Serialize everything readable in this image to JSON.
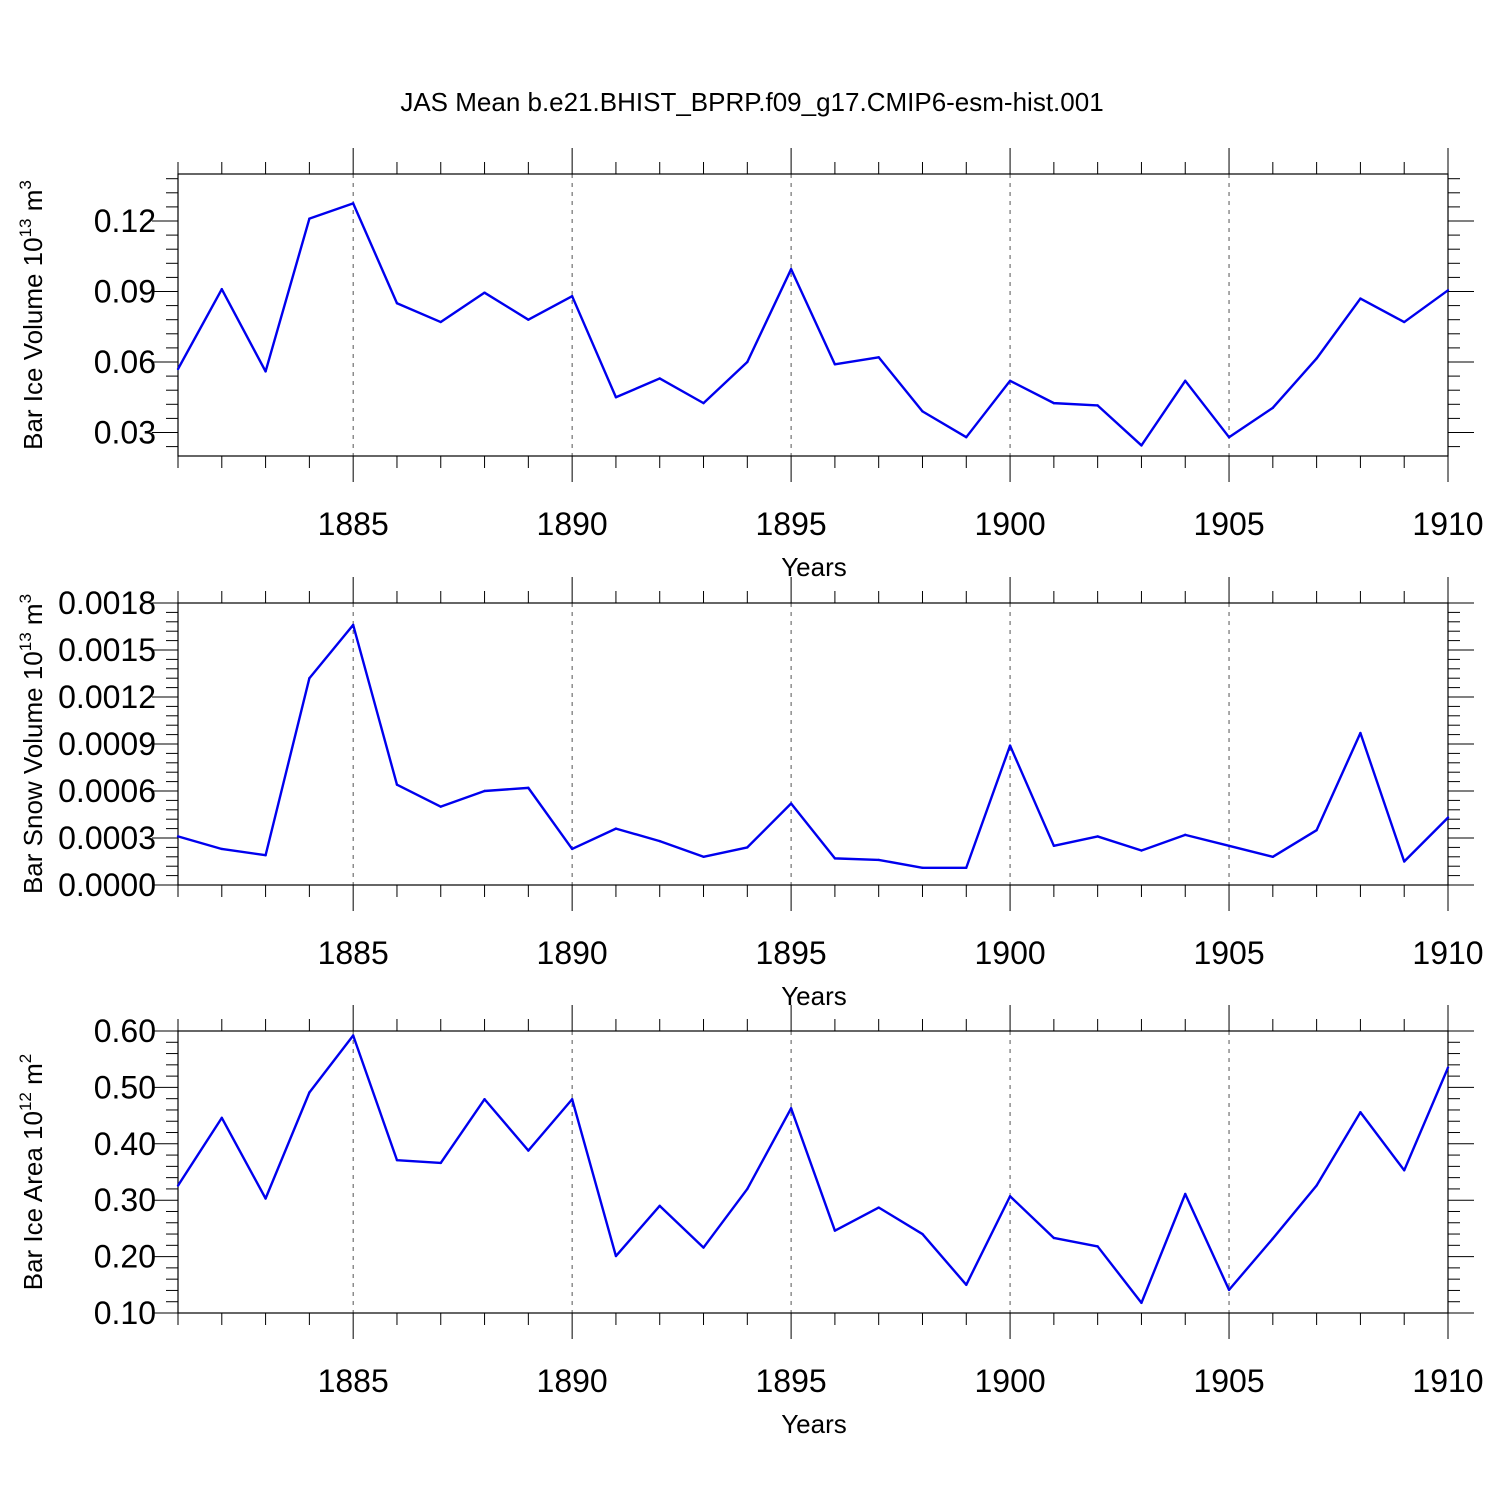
{
  "figure_title": "JAS Mean b.e21.BHIST_BPRP.f09_g17.CMIP6-esm-hist.001",
  "colors": {
    "line": "#0000ee",
    "axis": "#000000",
    "grid": "#555555"
  },
  "chart_data": [
    {
      "type": "line",
      "ylabel_main": "Bar Ice Volume 10",
      "ylabel_exp": "13",
      "ylabel_unit": " m",
      "ylabel_unit_exp": "3",
      "xlabel": "Years",
      "xlim": [
        1881,
        1910
      ],
      "ylim": [
        0.02,
        0.14
      ],
      "yticks": [
        0.03,
        0.06,
        0.09,
        0.12
      ],
      "ytick_labels": [
        "0.03",
        "0.06",
        "0.09",
        "0.12"
      ],
      "xticks": [
        1885,
        1890,
        1895,
        1900,
        1905,
        1910
      ],
      "xtick_labels": [
        "1885",
        "1890",
        "1895",
        "1900",
        "1905",
        "1910"
      ],
      "grid": "vertical dashed at major x ticks",
      "x": [
        1881,
        1882,
        1883,
        1884,
        1885,
        1886,
        1887,
        1888,
        1889,
        1890,
        1891,
        1892,
        1893,
        1894,
        1895,
        1896,
        1897,
        1898,
        1899,
        1900,
        1901,
        1902,
        1903,
        1904,
        1905,
        1906,
        1907,
        1908,
        1909,
        1910
      ],
      "y": [
        0.057,
        0.091,
        0.056,
        0.121,
        0.1275,
        0.085,
        0.077,
        0.0895,
        0.078,
        0.088,
        0.045,
        0.053,
        0.0425,
        0.06,
        0.0995,
        0.059,
        0.062,
        0.039,
        0.028,
        0.052,
        0.0425,
        0.0415,
        0.0245,
        0.052,
        0.028,
        0.0405,
        0.0615,
        0.087,
        0.077,
        0.0905
      ]
    },
    {
      "type": "line",
      "ylabel_main": "Bar Snow Volume 10",
      "ylabel_exp": "13",
      "ylabel_unit": " m",
      "ylabel_unit_exp": "3",
      "xlabel": "Years",
      "xlim": [
        1881,
        1910
      ],
      "ylim": [
        0.0,
        0.0018
      ],
      "yticks": [
        0.0,
        0.0003,
        0.0006,
        0.0009,
        0.0012,
        0.0015,
        0.0018
      ],
      "ytick_labels": [
        "0.0000",
        "0.0003",
        "0.0006",
        "0.0009",
        "0.0012",
        "0.0015",
        "0.0018"
      ],
      "xticks": [
        1885,
        1890,
        1895,
        1900,
        1905,
        1910
      ],
      "xtick_labels": [
        "1885",
        "1890",
        "1895",
        "1900",
        "1905",
        "1910"
      ],
      "grid": "vertical dashed at major x ticks",
      "x": [
        1881,
        1882,
        1883,
        1884,
        1885,
        1886,
        1887,
        1888,
        1889,
        1890,
        1891,
        1892,
        1893,
        1894,
        1895,
        1896,
        1897,
        1898,
        1899,
        1900,
        1901,
        1902,
        1903,
        1904,
        1905,
        1906,
        1907,
        1908,
        1909,
        1910
      ],
      "y": [
        0.00031,
        0.00023,
        0.00019,
        0.00132,
        0.00166,
        0.00064,
        0.0005,
        0.0006,
        0.00062,
        0.00023,
        0.00036,
        0.00028,
        0.00018,
        0.00024,
        0.00052,
        0.00017,
        0.00016,
        0.00011,
        0.00011,
        0.00089,
        0.00025,
        0.00031,
        0.00022,
        0.00032,
        0.00025,
        0.00018,
        0.00035,
        0.00097,
        0.00015,
        0.00043
      ]
    },
    {
      "type": "line",
      "ylabel_main": "Bar Ice Area 10",
      "ylabel_exp": "12",
      "ylabel_unit": " m",
      "ylabel_unit_exp": "2",
      "xlabel": "Years",
      "xlim": [
        1881,
        1910
      ],
      "ylim": [
        0.1,
        0.6
      ],
      "yticks": [
        0.1,
        0.2,
        0.3,
        0.4,
        0.5,
        0.6
      ],
      "ytick_labels": [
        "0.10",
        "0.20",
        "0.30",
        "0.40",
        "0.50",
        "0.60"
      ],
      "xticks": [
        1885,
        1890,
        1895,
        1900,
        1905,
        1910
      ],
      "xtick_labels": [
        "1885",
        "1890",
        "1895",
        "1900",
        "1905",
        "1910"
      ],
      "grid": "vertical dashed at major x ticks",
      "x": [
        1881,
        1882,
        1883,
        1884,
        1885,
        1886,
        1887,
        1888,
        1889,
        1890,
        1891,
        1892,
        1893,
        1894,
        1895,
        1896,
        1897,
        1898,
        1899,
        1900,
        1901,
        1902,
        1903,
        1904,
        1905,
        1906,
        1907,
        1908,
        1909,
        1910
      ],
      "y": [
        0.326,
        0.446,
        0.303,
        0.491,
        0.592,
        0.371,
        0.366,
        0.479,
        0.388,
        0.479,
        0.201,
        0.29,
        0.216,
        0.32,
        0.463,
        0.246,
        0.287,
        0.24,
        0.15,
        0.307,
        0.233,
        0.218,
        0.118,
        0.311,
        0.141,
        0.232,
        0.326,
        0.456,
        0.353,
        0.535
      ]
    }
  ]
}
